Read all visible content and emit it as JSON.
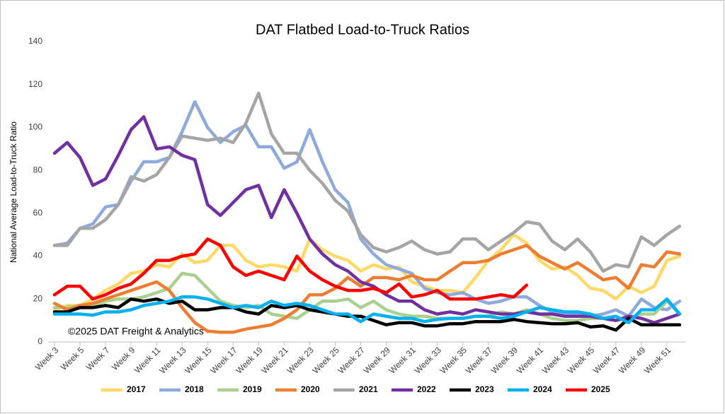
{
  "chart_data": {
    "type": "line",
    "title": "DAT Flatbed Load-to-Truck Ratios",
    "y_label": "National Average Load-to-Truck Ratio",
    "annotation": "©2025 DAT Freight & Analytics",
    "categories": [
      "Week 3",
      null,
      "Week 5",
      null,
      "Week 7",
      null,
      "Week 9",
      null,
      "Week 11",
      null,
      "Week 13",
      null,
      "Week 15",
      null,
      "Week 17",
      null,
      "Week 19",
      null,
      "Week 21",
      null,
      "Week 23",
      null,
      "Week 25",
      null,
      "Week 27",
      null,
      "Week 29",
      null,
      "Week 31",
      null,
      "Week 33",
      null,
      "Week 35",
      null,
      "Week 37",
      null,
      "Week 39",
      null,
      "Week 41",
      null,
      "Week 43",
      null,
      "Week 45",
      null,
      "Week 47",
      null,
      "Week 49",
      null,
      "Week 51",
      null
    ],
    "ylim": [
      0,
      140
    ],
    "yticks": [
      0,
      20,
      40,
      60,
      80,
      100,
      120,
      140
    ],
    "grid": false,
    "legend": "bottom",
    "series": [
      {
        "name": "2017",
        "color": "#ffd966",
        "values": [
          15,
          17,
          17,
          20,
          24,
          27,
          32,
          33,
          36,
          35,
          41,
          37,
          38,
          45,
          45,
          38,
          35,
          36,
          35,
          33,
          48,
          43,
          40,
          38,
          33,
          36,
          34,
          35,
          28,
          26,
          24,
          24,
          23,
          30,
          38,
          43,
          50,
          46,
          38,
          34,
          35,
          31,
          25,
          24,
          20,
          26,
          23,
          26,
          38,
          40
        ]
      },
      {
        "name": "2018",
        "color": "#8eaadc",
        "values": [
          45,
          46,
          53,
          55,
          63,
          64,
          75,
          84,
          84,
          86,
          98,
          112,
          100,
          93,
          98,
          101,
          91,
          91,
          81,
          84,
          99,
          84,
          71,
          65,
          48,
          41,
          36,
          34,
          32,
          25,
          23,
          22,
          23,
          20,
          18,
          19,
          21,
          21,
          17,
          14,
          13,
          13,
          12,
          13,
          15,
          12,
          20,
          16,
          15,
          19
        ]
      },
      {
        "name": "2019",
        "color": "#a9d08e",
        "values": [
          16,
          16,
          17,
          17,
          19,
          20,
          20,
          21,
          23,
          25,
          32,
          31,
          25,
          19,
          17,
          16,
          17,
          13,
          12,
          11,
          15,
          19,
          19,
          20,
          16,
          19,
          15,
          13,
          12,
          12,
          11,
          11,
          11,
          12,
          12,
          14,
          13,
          15,
          13,
          11,
          10,
          10,
          11,
          11,
          10,
          11,
          13,
          13,
          19,
          13
        ]
      },
      {
        "name": "2020",
        "color": "#ed7d31",
        "values": [
          18,
          15,
          17,
          18,
          20,
          22,
          24,
          26,
          28,
          24,
          16,
          9,
          5,
          4.5,
          4.5,
          6,
          7,
          8,
          11,
          15,
          22,
          22,
          25,
          30,
          26,
          30,
          30,
          29,
          31,
          29,
          29,
          33,
          37,
          37,
          38,
          41,
          43,
          45,
          40,
          37,
          34,
          37,
          33,
          29,
          30,
          25,
          36,
          35,
          42,
          41
        ]
      },
      {
        "name": "2021",
        "color": "#a5a5a5",
        "values": [
          45,
          45,
          53,
          53,
          57,
          64,
          77,
          75,
          78,
          86,
          96,
          95,
          94,
          95,
          93,
          102,
          116,
          97,
          88,
          88,
          80,
          74,
          66,
          61,
          50,
          44,
          42,
          44,
          47,
          43,
          41,
          42,
          48,
          48,
          43,
          47,
          51,
          56,
          55,
          47,
          43,
          48,
          42,
          33,
          36,
          35,
          49,
          45,
          50,
          54
        ]
      },
      {
        "name": "2022",
        "color": "#7030a0",
        "values": [
          88,
          93,
          86,
          73,
          76,
          87,
          99,
          105,
          90,
          91,
          87,
          85,
          64,
          59,
          65,
          71,
          73,
          58,
          71,
          60,
          48,
          41,
          36,
          33,
          28,
          26,
          22,
          19,
          19,
          15,
          13,
          14,
          13,
          15,
          14,
          13,
          13,
          14,
          13,
          13,
          12,
          12,
          12,
          11,
          10,
          12,
          11,
          9,
          11,
          13
        ]
      },
      {
        "name": "2023",
        "color": "#000000",
        "values": [
          14,
          14,
          16,
          16,
          17,
          16,
          20,
          19,
          20,
          18,
          19,
          15,
          15,
          16,
          16,
          14,
          13,
          17,
          16,
          17,
          15,
          14,
          13,
          12,
          12,
          10,
          8,
          9,
          9,
          7.5,
          7.5,
          8.5,
          8.5,
          9.5,
          9.5,
          9.5,
          10.5,
          9.5,
          9,
          8.5,
          8.5,
          9,
          7,
          7.5,
          5.5,
          11,
          8,
          8,
          8,
          8
        ]
      },
      {
        "name": "2024",
        "color": "#00b0f0",
        "values": [
          13,
          13,
          13,
          12.5,
          14,
          14,
          15,
          17,
          18,
          19,
          21,
          21,
          20,
          18,
          16,
          17,
          16,
          19,
          17,
          18,
          17,
          15,
          13,
          13,
          9.5,
          13,
          12,
          11,
          11,
          9.5,
          10.5,
          11,
          11,
          12,
          12,
          11,
          12,
          14,
          16,
          15,
          14,
          14,
          13,
          11,
          12,
          9,
          15,
          15,
          20,
          13
        ]
      },
      {
        "name": "2025",
        "color": "#ff0000",
        "values": [
          22,
          26,
          26,
          20,
          22,
          25,
          27,
          32,
          38,
          38,
          40,
          41,
          48,
          45,
          35,
          31,
          33,
          31,
          29,
          40,
          33,
          29,
          26,
          24,
          24,
          25,
          23,
          27,
          21,
          22,
          24,
          20,
          20,
          20,
          21,
          22,
          21,
          26.5,
          null,
          null,
          null,
          null,
          null,
          null,
          null,
          null,
          null,
          null,
          null,
          null
        ]
      }
    ]
  }
}
